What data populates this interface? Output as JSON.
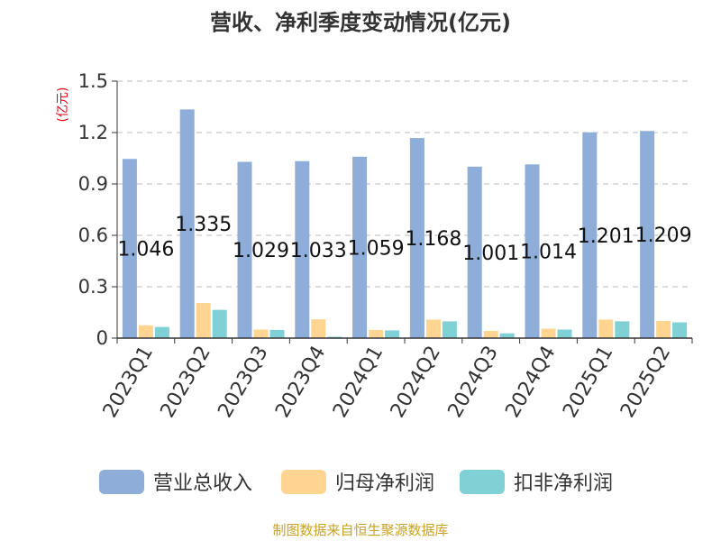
{
  "title": "营收、净利季度变动情况(亿元)",
  "unit_label": "(亿元)",
  "source": "制图数据来自恒生聚源数据库",
  "colors": {
    "revenue": "#8eadd9",
    "net_profit": "#ffd591",
    "deducted_profit": "#7fd1d5",
    "grid": "#bbbbbb",
    "axis": "#333333",
    "unit": "#e60012",
    "source": "#c9a227"
  },
  "chart_data": {
    "type": "bar",
    "categories": [
      "2023Q1",
      "2023Q2",
      "2023Q3",
      "2023Q4",
      "2024Q1",
      "2024Q2",
      "2024Q3",
      "2024Q4",
      "2025Q1",
      "2025Q2"
    ],
    "series": [
      {
        "name": "营业总收入",
        "values": [
          1.046,
          1.335,
          1.029,
          1.033,
          1.059,
          1.168,
          1.001,
          1.014,
          1.201,
          1.209
        ],
        "labels": [
          "1.046",
          "1.335",
          "1.029",
          "1.033",
          "1.059",
          "1.168",
          "1.001",
          "1.014",
          "1.201",
          "1.209"
        ]
      },
      {
        "name": "归母净利润",
        "values": [
          0.075,
          0.205,
          0.05,
          0.11,
          0.048,
          0.108,
          0.042,
          0.055,
          0.108,
          0.1
        ]
      },
      {
        "name": "扣非净利润",
        "values": [
          0.065,
          0.165,
          0.048,
          0.008,
          0.045,
          0.098,
          0.028,
          0.05,
          0.098,
          0.092
        ]
      }
    ],
    "yticks": [
      "0",
      "0.3",
      "0.6",
      "0.9",
      "1.2",
      "1.5"
    ],
    "ylim": [
      0,
      1.5
    ],
    "grid": true,
    "legend_position": "bottom"
  }
}
